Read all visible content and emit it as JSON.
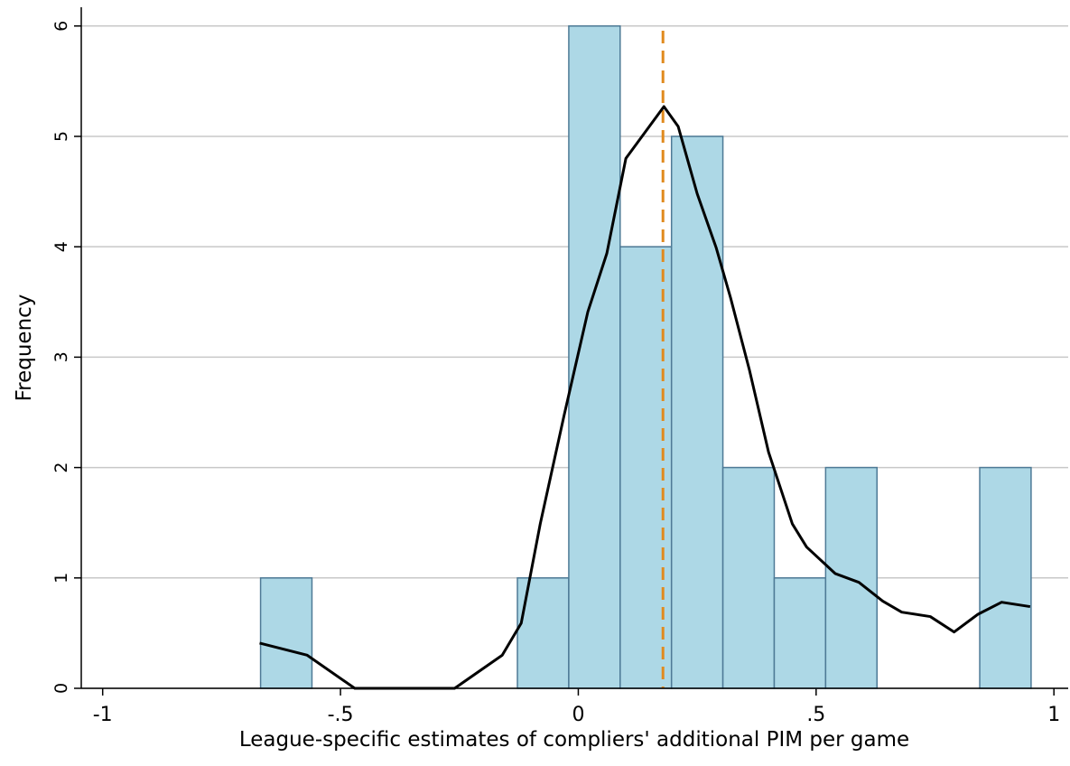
{
  "chart_data": {
    "type": "histogram",
    "x_label": "League-specific estimates of compliers' additional PIM per game",
    "y_label": "Frequency",
    "bins": [
      -0.668,
      -0.56,
      -0.452,
      -0.344,
      -0.236,
      -0.128,
      -0.02,
      0.088,
      0.196,
      0.304,
      0.412,
      0.52,
      0.628,
      0.736,
      0.844,
      0.952
    ],
    "values": [
      1,
      0,
      0,
      0,
      0,
      1,
      6,
      4,
      5,
      2,
      1,
      2,
      0,
      0,
      2
    ],
    "color": "#add8e6",
    "edge_color": "#4e7a96",
    "density": {
      "color": "#000000",
      "x": [
        -0.67,
        -0.57,
        -0.47,
        -0.26,
        -0.16,
        -0.12,
        -0.08,
        -0.03,
        0.02,
        0.06,
        0.1,
        0.18,
        0.21,
        0.25,
        0.29,
        0.32,
        0.36,
        0.4,
        0.45,
        0.48,
        0.54,
        0.59,
        0.64,
        0.68,
        0.74,
        0.79,
        0.84,
        0.89,
        0.95
      ],
      "y": [
        0.41,
        0.3,
        0,
        0,
        0.3,
        0.59,
        1.49,
        2.47,
        3.41,
        3.94,
        4.8,
        5.27,
        5.09,
        4.48,
        3.99,
        3.54,
        2.88,
        2.14,
        1.49,
        1.28,
        1.04,
        0.96,
        0.79,
        0.69,
        0.65,
        0.51,
        0.67,
        0.78,
        0.74
      ]
    },
    "vline": {
      "x": 0.178,
      "color": "#e08a1e"
    },
    "xlim": [
      -1.045,
      1.03
    ],
    "ylim": [
      0,
      6.17
    ],
    "xticks": [
      {
        "value": -1,
        "label": "-1"
      },
      {
        "value": -0.5,
        "label": "-.5"
      },
      0,
      {
        "value": 0.5,
        "label": ".5"
      },
      1
    ],
    "yticks": [
      0,
      1,
      2,
      3,
      4,
      5,
      6
    ],
    "grid": true
  }
}
